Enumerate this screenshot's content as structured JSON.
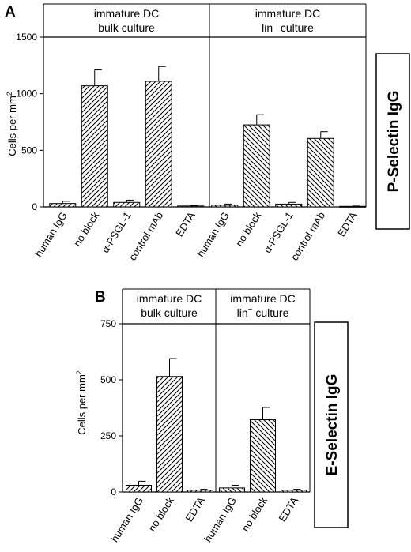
{
  "chart_data": [
    {
      "type": "bar",
      "panel": "A",
      "ylabel": "Cells per mm",
      "ylabel_superscript": "2",
      "ylim": [
        0,
        1500
      ],
      "yticks": [
        0,
        500,
        1000,
        1500
      ],
      "side_label": "P-Selectin IgG",
      "groups": [
        {
          "header_line1": "immature DC",
          "header_line2": "bulk culture",
          "categories": [
            "human IgG",
            "no block",
            "α-PSGL-1",
            "control mAb",
            "EDTA"
          ],
          "values": [
            30,
            1070,
            40,
            1110,
            8
          ],
          "errors": [
            20,
            140,
            20,
            130,
            4
          ],
          "hatch": "up"
        },
        {
          "header_line1": "immature DC",
          "header_line2_main": "lin",
          "header_line2_sup": "−",
          "header_line2_rest": " culture",
          "categories": [
            "human IgG",
            "no block",
            "α-PSGL-1",
            "control mAb",
            "EDTA"
          ],
          "values": [
            15,
            725,
            25,
            605,
            5
          ],
          "errors": [
            10,
            90,
            15,
            60,
            3
          ],
          "hatch": "down"
        }
      ]
    },
    {
      "type": "bar",
      "panel": "B",
      "ylabel": "Cells per mm",
      "ylabel_superscript": "2",
      "ylim": [
        0,
        750
      ],
      "yticks": [
        0,
        250,
        500,
        750
      ],
      "side_label": "E-Selectin IgG",
      "groups": [
        {
          "header_line1": "immature DC",
          "header_line2": "bulk culture",
          "categories": [
            "human IgG",
            "no block",
            "EDTA"
          ],
          "values": [
            30,
            515,
            8
          ],
          "errors": [
            18,
            80,
            4
          ],
          "hatch": "up"
        },
        {
          "header_line1": "immature DC",
          "header_line2_main": "lin",
          "header_line2_sup": "−",
          "header_line2_rest": " culture",
          "categories": [
            "human IgG",
            "no block",
            "EDTA"
          ],
          "values": [
            18,
            322,
            8
          ],
          "errors": [
            12,
            55,
            4
          ],
          "hatch": "down"
        }
      ]
    }
  ]
}
